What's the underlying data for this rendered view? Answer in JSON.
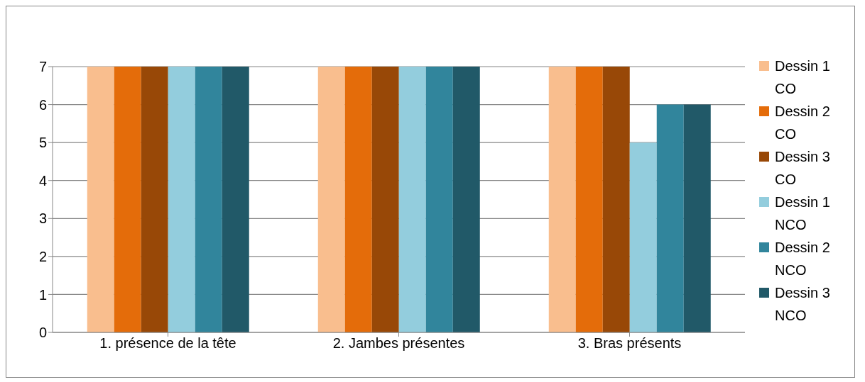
{
  "chart_data": {
    "type": "bar",
    "categories": [
      "1. présence de la tête",
      "2. Jambes présentes",
      "3. Bras présents"
    ],
    "series": [
      {
        "name": "Dessin 1 CO",
        "color": "#f9be8e",
        "values": [
          7,
          7,
          7
        ]
      },
      {
        "name": "Dessin 2 CO",
        "color": "#e46c0a",
        "values": [
          7,
          7,
          7
        ]
      },
      {
        "name": "Dessin 3 CO",
        "color": "#984807",
        "values": [
          7,
          7,
          7
        ]
      },
      {
        "name": "Dessin 1 NCO",
        "color": "#93cddd",
        "values": [
          7,
          7,
          5
        ]
      },
      {
        "name": "Dessin 2 NCO",
        "color": "#31859c",
        "values": [
          7,
          7,
          6
        ]
      },
      {
        "name": "Dessin 3 NCO",
        "color": "#215968",
        "values": [
          7,
          7,
          6
        ]
      }
    ],
    "ylim": [
      0,
      7
    ],
    "yticks": [
      0,
      1,
      2,
      3,
      4,
      5,
      6,
      7
    ],
    "grid": "y",
    "legend": "right"
  }
}
